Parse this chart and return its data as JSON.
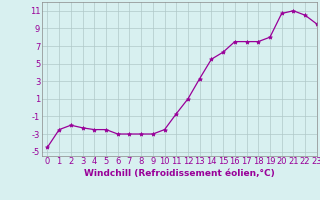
{
  "x": [
    0,
    1,
    2,
    3,
    4,
    5,
    6,
    7,
    8,
    9,
    10,
    11,
    12,
    13,
    14,
    15,
    16,
    17,
    18,
    19,
    20,
    21,
    22,
    23
  ],
  "y": [
    -4.5,
    -2.5,
    -2.0,
    -2.3,
    -2.5,
    -2.5,
    -3.0,
    -3.0,
    -3.0,
    -3.0,
    -2.5,
    -0.7,
    1.0,
    3.3,
    5.5,
    6.3,
    7.5,
    7.5,
    7.5,
    8.0,
    10.7,
    11.0,
    10.5,
    9.5
  ],
  "line_color": "#990099",
  "marker": "*",
  "marker_size": 3,
  "bg_color": "#d8f0f0",
  "grid_color": "#b0c8c8",
  "xlabel": "Windchill (Refroidissement éolien,°C)",
  "xlim": [
    -0.5,
    23
  ],
  "ylim": [
    -5.5,
    12
  ],
  "yticks": [
    -5,
    -3,
    -1,
    1,
    3,
    5,
    7,
    9,
    11
  ],
  "xticks": [
    0,
    1,
    2,
    3,
    4,
    5,
    6,
    7,
    8,
    9,
    10,
    11,
    12,
    13,
    14,
    15,
    16,
    17,
    18,
    19,
    20,
    21,
    22,
    23
  ],
  "label_fontsize": 6.5,
  "tick_fontsize": 6
}
